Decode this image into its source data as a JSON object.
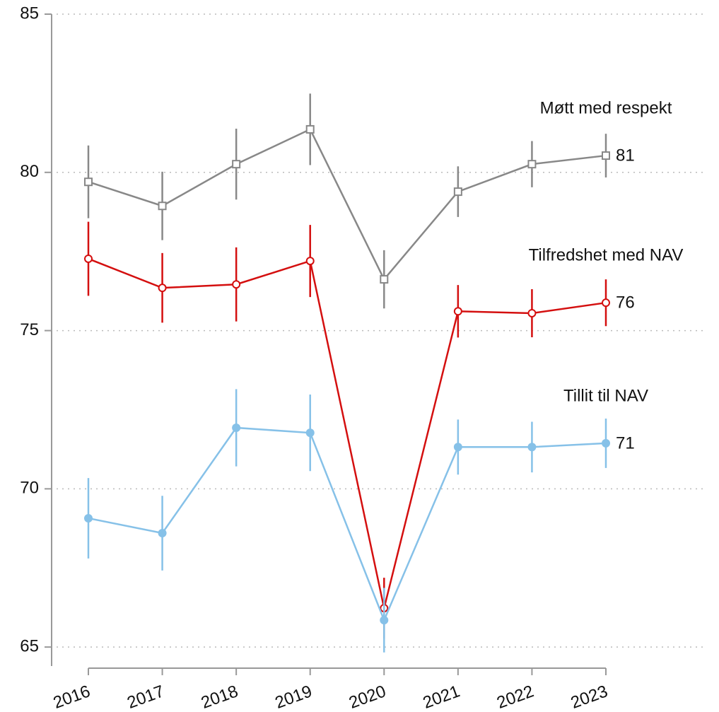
{
  "chart_data": {
    "type": "line",
    "categories": [
      "2016",
      "2017",
      "2018",
      "2019",
      "2020",
      "2021",
      "2022",
      "2023"
    ],
    "ylim": [
      64.4,
      85
    ],
    "yticks": [
      65,
      70,
      75,
      80,
      85
    ],
    "grid": true,
    "series": [
      {
        "name": "Møtt med respekt",
        "color": "#888888",
        "marker": "square-open",
        "values": [
          79.7,
          78.94,
          80.26,
          81.36,
          76.62,
          79.39,
          80.26,
          80.53
        ],
        "errors": [
          1.15,
          1.08,
          1.12,
          1.13,
          0.92,
          0.8,
          0.73,
          0.69
        ],
        "value_labels": [
          null,
          null,
          null,
          null,
          null,
          null,
          null,
          "81"
        ]
      },
      {
        "name": "Tilfredshet med NAV",
        "color": "#d40f0f",
        "marker": "circle-open",
        "values": [
          77.27,
          76.35,
          76.46,
          77.2,
          66.23,
          75.61,
          75.55,
          75.88
        ],
        "errors": [
          1.17,
          1.1,
          1.17,
          1.14,
          0.96,
          0.83,
          0.76,
          0.74
        ],
        "value_labels": [
          null,
          null,
          null,
          null,
          null,
          null,
          null,
          "76"
        ]
      },
      {
        "name": "Tillit til NAV",
        "color": "#86c1e8",
        "marker": "circle",
        "values": [
          69.07,
          68.6,
          71.93,
          71.77,
          65.85,
          71.32,
          71.32,
          71.44
        ],
        "errors": [
          1.27,
          1.18,
          1.22,
          1.21,
          1.02,
          0.87,
          0.8,
          0.78
        ],
        "value_labels": [
          null,
          null,
          null,
          null,
          null,
          null,
          null,
          "71"
        ]
      }
    ]
  }
}
